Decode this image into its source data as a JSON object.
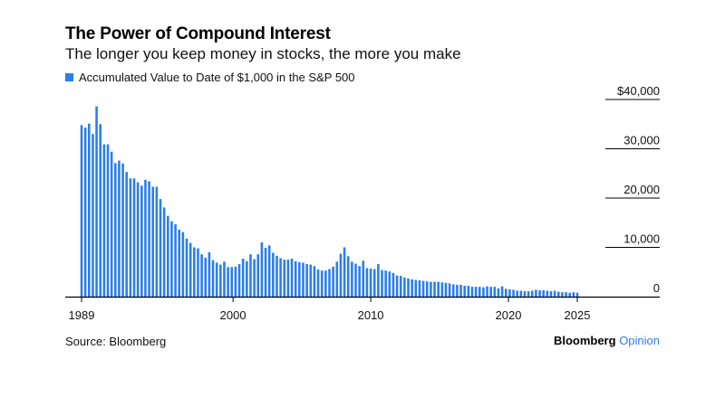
{
  "header": {
    "title": "The Power of Compound Interest",
    "subtitle": "The longer you keep money in stocks, the more you make"
  },
  "footer": {
    "source": "Source: Bloomberg",
    "brand_main": "Bloomberg",
    "brand_sub": "Opinion"
  },
  "colors": {
    "bar": "#2b7de9",
    "grid": "#000000"
  },
  "chart_data": {
    "type": "bar",
    "title": "The Power of Compound Interest",
    "subtitle": "The longer you keep money in stocks, the more you make",
    "xlabel": "",
    "ylabel": "",
    "legend": [
      {
        "name": "Accumulated Value to Date of $1,000 in the S&P 500",
        "position": "top-left"
      }
    ],
    "xlim": [
      1989,
      2032
    ],
    "ylim": [
      0,
      40000
    ],
    "x_ticks": [
      "1989",
      "2000",
      "2010",
      "2020",
      "2025"
    ],
    "x_tick_values": [
      1989,
      2000,
      2010,
      2020,
      2025
    ],
    "y_ticks": [
      "$40,000",
      "30,000",
      "20,000",
      "10,000",
      "0"
    ],
    "y_tick_values": [
      40000,
      30000,
      20000,
      10000,
      0
    ],
    "grid": "horizontal, at y ticks",
    "series": [
      {
        "name": "Accumulated Value to Date of $1,000 in the S&P 500",
        "start_year": 1989,
        "period": "quarterly",
        "values": [
          34800,
          34300,
          35100,
          33000,
          38600,
          35000,
          30900,
          30900,
          29400,
          27100,
          27600,
          27000,
          25300,
          24000,
          24000,
          23200,
          22500,
          23700,
          23400,
          22300,
          22300,
          19800,
          18100,
          16400,
          15300,
          14700,
          13600,
          13100,
          11800,
          10900,
          10000,
          9800,
          8600,
          7900,
          9000,
          7400,
          6900,
          6500,
          7100,
          6000,
          6000,
          6100,
          6600,
          7700,
          7200,
          8600,
          7600,
          8600,
          11000,
          9900,
          10400,
          8900,
          8300,
          7800,
          7500,
          7500,
          7700,
          7200,
          7000,
          6900,
          6600,
          6500,
          6200,
          5500,
          5300,
          5300,
          5600,
          6100,
          7100,
          8700,
          10000,
          8200,
          7100,
          6700,
          6200,
          7300,
          5800,
          5700,
          5600,
          6600,
          5400,
          5300,
          5100,
          4800,
          4300,
          4200,
          3900,
          3700,
          3500,
          3400,
          3300,
          3200,
          3100,
          3000,
          3000,
          3000,
          2900,
          2800,
          2700,
          2500,
          2400,
          2400,
          2200,
          2200,
          2000,
          2000,
          2000,
          1900,
          2100,
          2000,
          2000,
          1700,
          2100,
          1600,
          1500,
          1400,
          1200,
          1200,
          1100,
          1100,
          1200,
          1400,
          1300,
          1300,
          1200,
          1100,
          1200,
          1000,
          900,
          900,
          800,
          900,
          800
        ]
      }
    ]
  }
}
